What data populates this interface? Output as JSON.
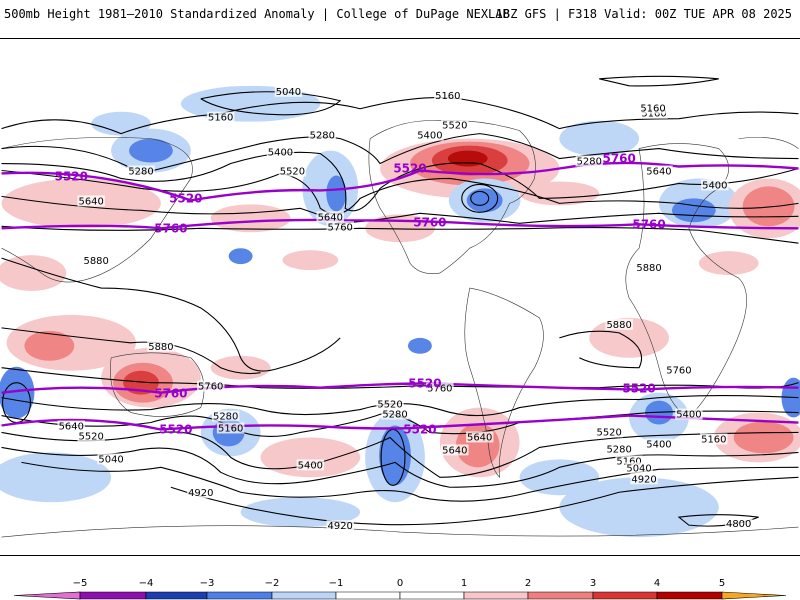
{
  "header": {
    "left": "500mb Height 1981–2010 Standardized Anomaly | College of DuPage NEXLAB",
    "right": "18Z GFS | F318 Valid: 00Z TUE APR 08 2025"
  },
  "colors": {
    "neg5": "#e36ed4",
    "neg4": "#8c0fae",
    "neg3": "#1c3fb0",
    "neg2": "#4f7fe6",
    "neg1": "#bcd5f7",
    "zero": "#ffffff",
    "pos1": "#f7c6c8",
    "pos2": "#ef7f7f",
    "pos3": "#d93535",
    "pos4": "#b30000",
    "pos5": "#f5a623",
    "purple_contour": "#9a00cc"
  },
  "colorbar": {
    "ticks": [
      "−5",
      "−4",
      "−3",
      "−2",
      "−1",
      "0",
      "1",
      "2",
      "3",
      "4",
      "5"
    ]
  },
  "contour_labels": {
    "black": [
      "5040",
      "5160",
      "5160",
      "5160",
      "5160",
      "5280",
      "5280",
      "5280",
      "5400",
      "5400",
      "5400",
      "5520",
      "5520",
      "5640",
      "5640",
      "5640",
      "5760",
      "5880",
      "5880",
      "5880",
      "5880",
      "5760",
      "5760",
      "5760",
      "5640",
      "5520",
      "5280",
      "5160",
      "5400",
      "5040",
      "4920",
      "5520",
      "5280",
      "5640",
      "5520",
      "5640",
      "5400",
      "5280",
      "5160",
      "5040",
      "4920",
      "4920",
      "4800",
      "5400",
      "5160"
    ],
    "purple": [
      "5520",
      "5520",
      "5520",
      "5760",
      "5760",
      "5760",
      "5760",
      "5760",
      "5520",
      "5520",
      "5520",
      "5520"
    ]
  }
}
